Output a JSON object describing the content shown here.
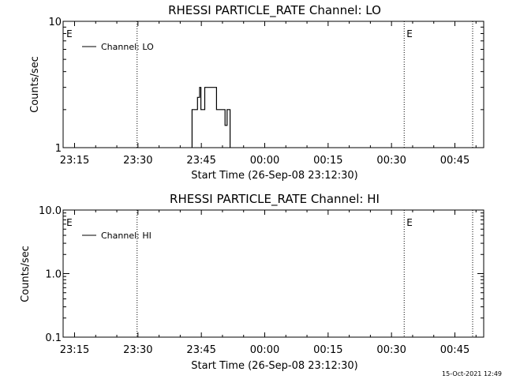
{
  "colors": {
    "background": "#ffffff",
    "foreground": "#000000"
  },
  "timestamp": "15-Oct-2021 12:49",
  "chart_data": [
    {
      "type": "line",
      "title": "RHESSI PARTICLE_RATE Channel: LO",
      "xlabel": "Start Time (26-Sep-08 23:12:30)",
      "ylabel": "Counts/sec",
      "x_tick_labels": [
        "23:15",
        "23:30",
        "23:45",
        "00:00",
        "00:15",
        "00:30",
        "00:45"
      ],
      "y_scale": "log",
      "ylim": [
        1,
        10
      ],
      "y_tick_labels": [
        "1",
        "10"
      ],
      "legend": {
        "position": "top-left",
        "entries": [
          "Channel: LO"
        ]
      },
      "markers": {
        "label": "E",
        "x_minutes": [
          0.0,
          80.5
        ]
      },
      "vlines_minutes": [
        17.3,
        80.5,
        96.7
      ],
      "series": [
        {
          "name": "Channel: LO",
          "x_minutes": [
            30.3,
            30.3,
            31.6,
            31.6,
            32.1,
            32.1,
            32.4,
            32.4,
            32.7,
            32.7,
            33.3,
            33.3,
            34.5,
            34.5,
            35.4,
            35.4,
            36.1,
            36.1,
            38.1,
            38.1,
            38.6,
            38.6,
            39.3,
            39.3
          ],
          "counts": [
            1,
            2,
            2,
            2.5,
            2.5,
            3,
            3,
            2,
            2,
            2,
            2,
            3,
            3,
            3,
            3,
            3,
            3,
            2,
            2,
            1.5,
            1.5,
            2,
            2,
            1
          ]
        }
      ]
    },
    {
      "type": "line",
      "title": "RHESSI PARTICLE_RATE Channel: HI",
      "xlabel": "Start Time (26-Sep-08 23:12:30)",
      "ylabel": "Counts/sec",
      "x_tick_labels": [
        "23:15",
        "23:30",
        "23:45",
        "00:00",
        "00:15",
        "00:30",
        "00:45"
      ],
      "y_scale": "log",
      "ylim": [
        0.1,
        10
      ],
      "y_tick_labels": [
        "0.1",
        "1.0",
        "10.0"
      ],
      "legend": {
        "position": "top-left",
        "entries": [
          "Channel: HI"
        ]
      },
      "markers": {
        "label": "E",
        "x_minutes": [
          0.0,
          80.5
        ]
      },
      "vlines_minutes": [
        17.3,
        80.5,
        96.7
      ],
      "series": [
        {
          "name": "Channel: HI",
          "x_minutes": [],
          "counts": []
        }
      ]
    }
  ]
}
